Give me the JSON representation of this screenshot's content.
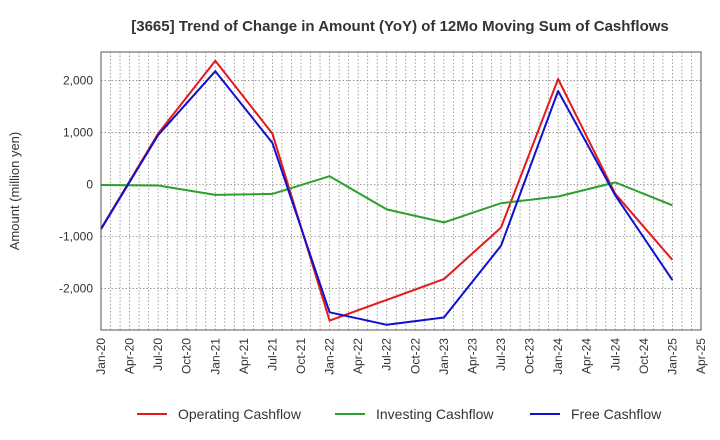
{
  "chart_data": {
    "type": "line",
    "title": "[3665]  Trend of Change in Amount (YoY) of 12Mo Moving Sum of Cashflows",
    "xlabel": "",
    "ylabel": "Amount (million yen)",
    "ylim": [
      -2800,
      2550
    ],
    "yticks": [
      -2000,
      -1000,
      0,
      1000,
      2000
    ],
    "ytick_labels": [
      "-2,000",
      "-1,000",
      "0",
      "1,000",
      "2,000"
    ],
    "x_labels": [
      "Jan-20",
      "Apr-20",
      "Jul-20",
      "Oct-20",
      "Jan-21",
      "Apr-21",
      "Jul-21",
      "Oct-21",
      "Jan-22",
      "Apr-22",
      "Jul-22",
      "Oct-22",
      "Jan-23",
      "Apr-23",
      "Jul-23",
      "Oct-23",
      "Jan-24",
      "Apr-24",
      "Jul-24",
      "Oct-24",
      "Jan-25",
      "Apr-25"
    ],
    "grid": true,
    "legend_position": "bottom",
    "series": [
      {
        "name": "Operating Cashflow",
        "color": "#e31a1c",
        "x": [
          "Jan-20",
          "Jul-20",
          "Jan-21",
          "Jul-21",
          "Jan-22",
          "Jul-22",
          "Jan-23",
          "Jul-23",
          "Jan-24",
          "Jul-24",
          "Jan-25"
        ],
        "values": [
          -850,
          980,
          2380,
          980,
          -2620,
          -2220,
          -1820,
          -830,
          2030,
          -180,
          -1450
        ]
      },
      {
        "name": "Investing Cashflow",
        "color": "#2ca02c",
        "x": [
          "Jan-20",
          "Jul-20",
          "Jan-21",
          "Jul-21",
          "Jan-22",
          "Jul-22",
          "Jan-23",
          "Jul-23",
          "Jan-24",
          "Jul-24",
          "Jan-25"
        ],
        "values": [
          -10,
          -20,
          -200,
          -180,
          160,
          -480,
          -730,
          -360,
          -230,
          40,
          -400
        ]
      },
      {
        "name": "Free Cashflow",
        "color": "#1010d0",
        "x": [
          "Jan-20",
          "Jul-20",
          "Jan-21",
          "Jul-21",
          "Jan-22",
          "Jul-22",
          "Jan-23",
          "Jul-23",
          "Jan-24",
          "Jul-24",
          "Jan-25"
        ],
        "values": [
          -860,
          950,
          2180,
          800,
          -2460,
          -2700,
          -2560,
          -1180,
          1800,
          -210,
          -1840
        ]
      }
    ]
  }
}
